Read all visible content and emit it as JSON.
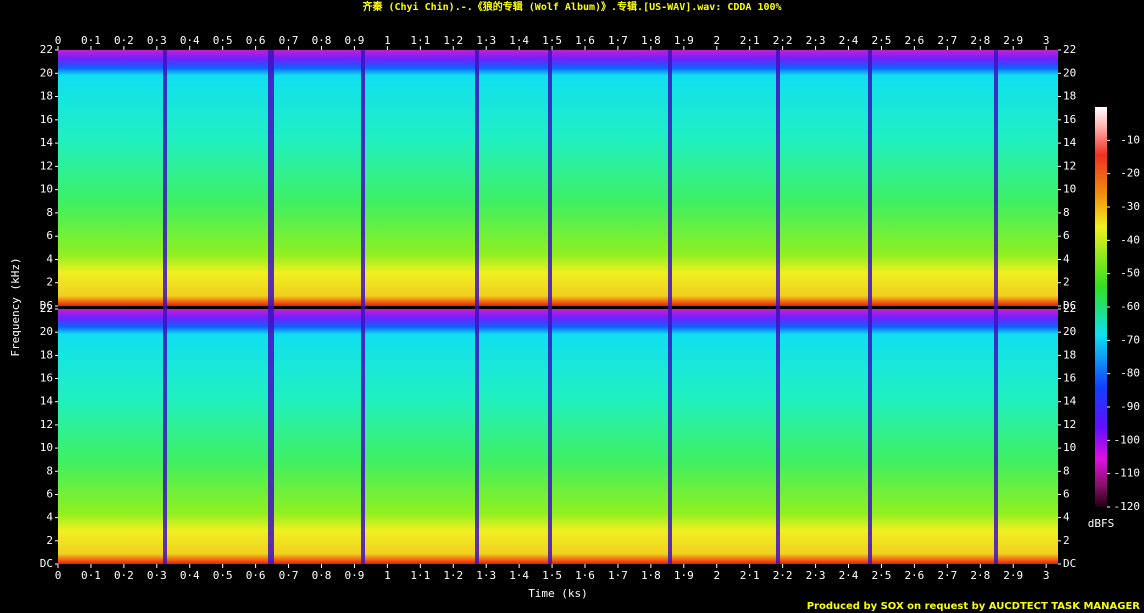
{
  "chart_data": {
    "type": "spectrogram",
    "title": "齐秦 (Chyi Chin).-.《狼的专辑 (Wolf Album)》.专辑.[US-WAV].wav: CDDA 100%",
    "credit": "Produced by SOX on request by AUCDTECT TASK MANAGER",
    "x_label": "Time (ks)",
    "y_label": "Frequency (kHz)",
    "xlim": [
      0,
      3.036
    ],
    "xticks": [
      0,
      {
        "value": 0.1,
        "label": "0·1"
      },
      {
        "value": 0.2,
        "label": "0·2"
      },
      {
        "value": 0.3,
        "label": "0·3"
      },
      {
        "value": 0.4,
        "label": "0·4"
      },
      {
        "value": 0.5,
        "label": "0·5"
      },
      {
        "value": 0.6,
        "label": "0·6"
      },
      {
        "value": 0.7,
        "label": "0·7"
      },
      {
        "value": 0.8,
        "label": "0·8"
      },
      {
        "value": 0.9,
        "label": "0·9"
      },
      1,
      {
        "value": 1.1,
        "label": "1·1"
      },
      {
        "value": 1.2,
        "label": "1·2"
      },
      {
        "value": 1.3,
        "label": "1·3"
      },
      {
        "value": 1.4,
        "label": "1·4"
      },
      {
        "value": 1.5,
        "label": "1·5"
      },
      {
        "value": 1.6,
        "label": "1·6"
      },
      {
        "value": 1.7,
        "label": "1·7"
      },
      {
        "value": 1.8,
        "label": "1·8"
      },
      {
        "value": 1.9,
        "label": "1·9"
      },
      2,
      {
        "value": 2.1,
        "label": "2·1"
      },
      {
        "value": 2.2,
        "label": "2·2"
      },
      {
        "value": 2.3,
        "label": "2·3"
      },
      {
        "value": 2.4,
        "label": "2·4"
      },
      {
        "value": 2.5,
        "label": "2·5"
      },
      {
        "value": 2.6,
        "label": "2·6"
      },
      {
        "value": 2.7,
        "label": "2·7"
      },
      {
        "value": 2.8,
        "label": "2·8"
      },
      {
        "value": 2.9,
        "label": "2·9"
      },
      3
    ],
    "ylim": [
      0,
      22
    ],
    "yticks": [
      {
        "value": 0,
        "label": "DC"
      },
      2,
      4,
      6,
      8,
      10,
      12,
      14,
      16,
      18,
      20,
      22
    ],
    "colorbar": {
      "label": "dBFS",
      "lim": [
        -120,
        0
      ],
      "ticks": [
        -10,
        -20,
        -30,
        -40,
        -50,
        -60,
        -70,
        -80,
        -90,
        -100,
        -110,
        -120
      ]
    }
  }
}
